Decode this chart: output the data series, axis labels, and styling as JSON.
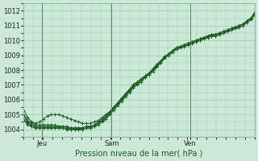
{
  "xlabel": "Pression niveau de la mer( hPa )",
  "background_color": "#cce8d8",
  "grid_color": "#99ccaa",
  "line_color": "#1a5c20",
  "ylim": [
    1003.5,
    1012.5
  ],
  "yticks": [
    1004,
    1005,
    1006,
    1007,
    1008,
    1009,
    1010,
    1011,
    1012
  ],
  "xtick_labels": [
    "Jeu",
    "Sam",
    "Ven"
  ],
  "xtick_pos": [
    0.08,
    0.38,
    0.72
  ],
  "vline_pos": [
    0.08,
    0.38,
    0.72
  ],
  "n_points": 60,
  "series": [
    [
      1005.3,
      1004.8,
      1004.5,
      1004.4,
      1004.5,
      1004.7,
      1004.9,
      1005.0,
      1005.0,
      1005.0,
      1004.9,
      1004.8,
      1004.7,
      1004.6,
      1004.5,
      1004.4,
      1004.4,
      1004.4,
      1004.5,
      1004.6,
      1004.8,
      1005.0,
      1005.2,
      1005.5,
      1005.8,
      1006.1,
      1006.4,
      1006.7,
      1007.0,
      1007.2,
      1007.4,
      1007.6,
      1007.8,
      1008.0,
      1008.2,
      1008.5,
      1008.8,
      1009.0,
      1009.2,
      1009.4,
      1009.5,
      1009.6,
      1009.7,
      1009.8,
      1009.9,
      1010.0,
      1010.1,
      1010.2,
      1010.3,
      1010.4,
      1010.5,
      1010.6,
      1010.7,
      1010.8,
      1010.9,
      1011.0,
      1011.1,
      1011.3,
      1011.5,
      1011.8
    ],
    [
      1004.9,
      1004.5,
      1004.3,
      1004.2,
      1004.2,
      1004.2,
      1004.2,
      1004.2,
      1004.2,
      1004.2,
      1004.2,
      1004.1,
      1004.1,
      1004.1,
      1004.1,
      1004.1,
      1004.2,
      1004.2,
      1004.3,
      1004.4,
      1004.6,
      1004.8,
      1005.1,
      1005.4,
      1005.7,
      1006.0,
      1006.3,
      1006.6,
      1006.9,
      1007.1,
      1007.3,
      1007.5,
      1007.8,
      1008.0,
      1008.3,
      1008.6,
      1008.9,
      1009.1,
      1009.3,
      1009.5,
      1009.6,
      1009.7,
      1009.8,
      1009.9,
      1010.0,
      1010.1,
      1010.2,
      1010.3,
      1010.4,
      1010.4,
      1010.5,
      1010.6,
      1010.7,
      1010.8,
      1010.9,
      1011.0,
      1011.1,
      1011.3,
      1011.5,
      1011.9
    ],
    [
      1004.7,
      1004.4,
      1004.2,
      1004.1,
      1004.1,
      1004.1,
      1004.1,
      1004.1,
      1004.1,
      1004.1,
      1004.1,
      1004.0,
      1004.0,
      1004.0,
      1004.0,
      1004.0,
      1004.1,
      1004.1,
      1004.2,
      1004.3,
      1004.5,
      1004.7,
      1005.0,
      1005.3,
      1005.6,
      1005.9,
      1006.2,
      1006.5,
      1006.8,
      1007.0,
      1007.2,
      1007.5,
      1007.7,
      1008.0,
      1008.3,
      1008.6,
      1008.9,
      1009.1,
      1009.3,
      1009.5,
      1009.6,
      1009.7,
      1009.8,
      1009.9,
      1010.0,
      1010.1,
      1010.2,
      1010.3,
      1010.3,
      1010.4,
      1010.4,
      1010.5,
      1010.6,
      1010.7,
      1010.8,
      1010.9,
      1011.0,
      1011.2,
      1011.4,
      1011.7
    ],
    [
      1004.6,
      1004.3,
      1004.2,
      1004.1,
      1004.1,
      1004.1,
      1004.1,
      1004.1,
      1004.1,
      1004.1,
      1004.1,
      1004.0,
      1004.0,
      1004.0,
      1004.0,
      1004.0,
      1004.1,
      1004.1,
      1004.2,
      1004.4,
      1004.6,
      1004.8,
      1005.1,
      1005.4,
      1005.7,
      1006.0,
      1006.3,
      1006.6,
      1006.9,
      1007.1,
      1007.3,
      1007.5,
      1007.7,
      1007.9,
      1008.2,
      1008.5,
      1008.8,
      1009.0,
      1009.2,
      1009.4,
      1009.5,
      1009.6,
      1009.7,
      1009.8,
      1009.9,
      1010.0,
      1010.1,
      1010.2,
      1010.3,
      1010.3,
      1010.4,
      1010.5,
      1010.6,
      1010.7,
      1010.8,
      1010.9,
      1011.0,
      1011.2,
      1011.4,
      1011.7
    ],
    [
      1005.0,
      1004.6,
      1004.4,
      1004.3,
      1004.3,
      1004.3,
      1004.3,
      1004.3,
      1004.3,
      1004.2,
      1004.2,
      1004.2,
      1004.1,
      1004.1,
      1004.1,
      1004.1,
      1004.2,
      1004.2,
      1004.3,
      1004.5,
      1004.7,
      1004.9,
      1005.2,
      1005.5,
      1005.8,
      1006.1,
      1006.4,
      1006.7,
      1007.0,
      1007.2,
      1007.4,
      1007.6,
      1007.8,
      1008.1,
      1008.4,
      1008.6,
      1008.9,
      1009.1,
      1009.3,
      1009.5,
      1009.6,
      1009.7,
      1009.8,
      1009.9,
      1010.0,
      1010.1,
      1010.2,
      1010.3,
      1010.4,
      1010.4,
      1010.5,
      1010.6,
      1010.7,
      1010.8,
      1010.9,
      1011.0,
      1011.1,
      1011.3,
      1011.5,
      1011.8
    ]
  ],
  "xlabel_color": "#1a5c20",
  "xlabel_fontsize": 7,
  "tick_fontsize": 6,
  "spine_color": "#88bb99"
}
